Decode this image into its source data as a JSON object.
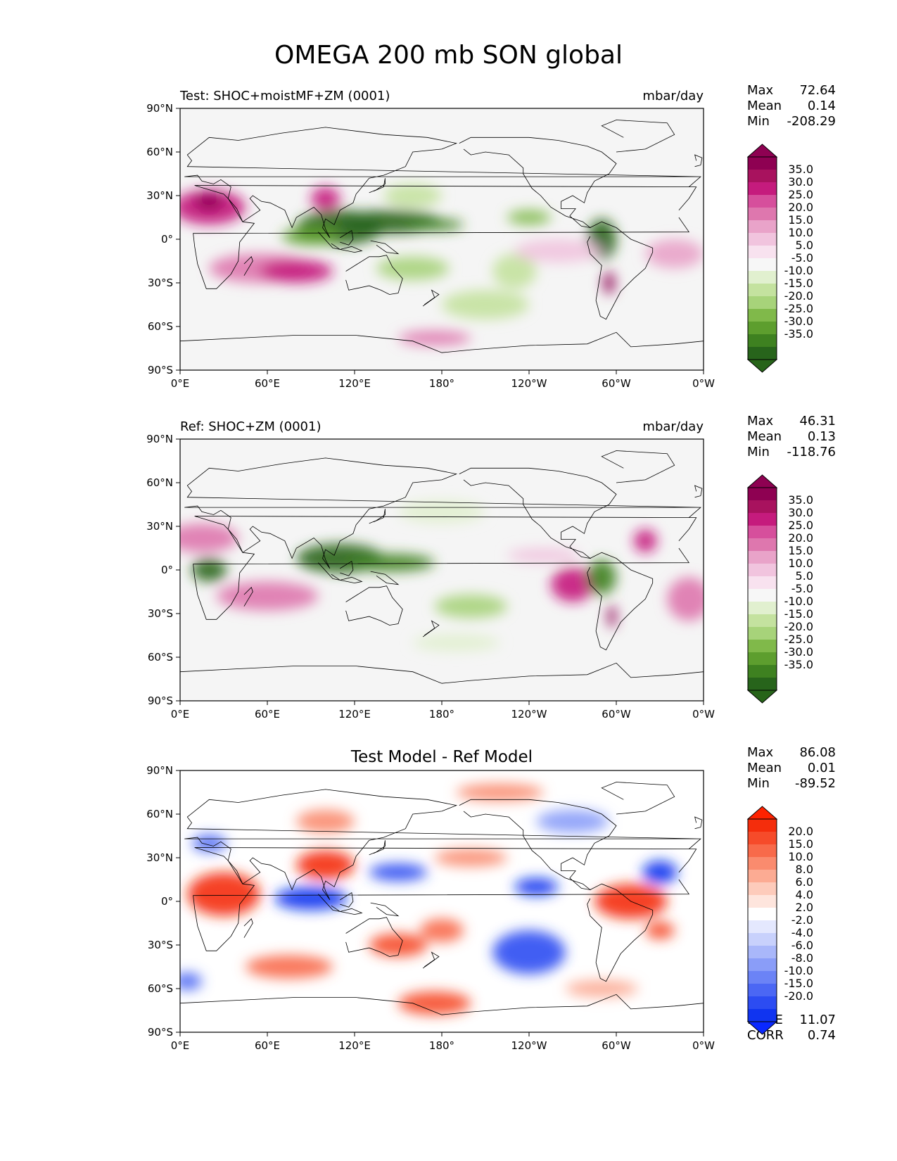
{
  "figure": {
    "title": "OMEGA 200 mb SON global"
  },
  "chart_data": [
    {
      "type": "heatmap",
      "id": "test",
      "title_left": "Test: SHOC+moistMF+ZM (0001)",
      "title_right": "mbar/day",
      "title_center": "",
      "stats": [
        {
          "label": "Max",
          "value": "72.64"
        },
        {
          "label": "Mean",
          "value": "0.14"
        },
        {
          "label": "Min",
          "value": "-208.29"
        }
      ],
      "extra_stats": [],
      "colorbar": {
        "ticks": [
          "35.0",
          "30.0",
          "25.0",
          "20.0",
          "15.0",
          "10.0",
          "5.0",
          "-5.0",
          "-10.0",
          "-15.0",
          "-20.0",
          "-25.0",
          "-30.0",
          "-35.0"
        ],
        "colors": [
          "#8e0152",
          "#a8125e",
          "#c51b7d",
          "#d64f9c",
          "#de77ae",
          "#e9a3c9",
          "#f1c4de",
          "#f8e2ef",
          "#f7f7f7",
          "#e1f0cf",
          "#c4e29f",
          "#a7d37a",
          "#80b94a",
          "#5d9e2e",
          "#3e8120",
          "#27641b"
        ],
        "cap_top": "#8e0152",
        "cap_bottom": "#276419"
      },
      "field": {
        "background": "#f5f5f5",
        "blobs": [
          {
            "lon": 20,
            "lat": 22,
            "rx": 25,
            "ry": 12,
            "color": "#c51b7d"
          },
          {
            "lon": 20,
            "lat": 26,
            "rx": 10,
            "ry": 6,
            "color": "#8e0152"
          },
          {
            "lon": 55,
            "lat": -20,
            "rx": 35,
            "ry": 10,
            "color": "#de77ae"
          },
          {
            "lon": 80,
            "lat": -22,
            "rx": 25,
            "ry": 8,
            "color": "#c51b7d"
          },
          {
            "lon": 110,
            "lat": 8,
            "rx": 30,
            "ry": 12,
            "color": "#27641b"
          },
          {
            "lon": 145,
            "lat": 12,
            "rx": 35,
            "ry": 8,
            "color": "#27641b"
          },
          {
            "lon": 175,
            "lat": 10,
            "rx": 20,
            "ry": 4,
            "color": "#3e8120"
          },
          {
            "lon": 90,
            "lat": 2,
            "rx": 20,
            "ry": 6,
            "color": "#5d9e2e"
          },
          {
            "lon": 290,
            "lat": 0,
            "rx": 10,
            "ry": 14,
            "color": "#27641b"
          },
          {
            "lon": 295,
            "lat": -30,
            "rx": 4,
            "ry": 8,
            "color": "#8e0152"
          },
          {
            "lon": 210,
            "lat": -45,
            "rx": 30,
            "ry": 10,
            "color": "#c4e29f"
          },
          {
            "lon": 230,
            "lat": -22,
            "rx": 15,
            "ry": 12,
            "color": "#c4e29f"
          },
          {
            "lon": 160,
            "lat": -20,
            "rx": 25,
            "ry": 8,
            "color": "#a7d37a"
          },
          {
            "lon": 340,
            "lat": -10,
            "rx": 20,
            "ry": 10,
            "color": "#e9a3c9"
          },
          {
            "lon": 260,
            "lat": -8,
            "rx": 30,
            "ry": 8,
            "color": "#f1c4de"
          },
          {
            "lon": 160,
            "lat": 30,
            "rx": 20,
            "ry": 8,
            "color": "#c4e29f"
          },
          {
            "lon": 240,
            "lat": 15,
            "rx": 15,
            "ry": 5,
            "color": "#80b94a"
          },
          {
            "lon": 175,
            "lat": -68,
            "rx": 25,
            "ry": 5,
            "color": "#de77ae"
          },
          {
            "lon": 100,
            "lat": 28,
            "rx": 10,
            "ry": 8,
            "color": "#c51b7d"
          }
        ]
      }
    },
    {
      "type": "heatmap",
      "id": "ref",
      "title_left": "Ref: SHOC+ZM (0001)",
      "title_right": "mbar/day",
      "title_center": "",
      "stats": [
        {
          "label": "Max",
          "value": "46.31"
        },
        {
          "label": "Mean",
          "value": "0.13"
        },
        {
          "label": "Min",
          "value": "-118.76"
        }
      ],
      "extra_stats": [],
      "colorbar": {
        "ticks": [
          "35.0",
          "30.0",
          "25.0",
          "20.0",
          "15.0",
          "10.0",
          "5.0",
          "-5.0",
          "-10.0",
          "-15.0",
          "-20.0",
          "-25.0",
          "-30.0",
          "-35.0"
        ],
        "colors": [
          "#8e0152",
          "#a8125e",
          "#c51b7d",
          "#d64f9c",
          "#de77ae",
          "#e9a3c9",
          "#f1c4de",
          "#f8e2ef",
          "#f7f7f7",
          "#e1f0cf",
          "#c4e29f",
          "#a7d37a",
          "#80b94a",
          "#5d9e2e",
          "#3e8120",
          "#27641b"
        ],
        "cap_top": "#8e0152",
        "cap_bottom": "#276419"
      },
      "field": {
        "background": "#f5f5f5",
        "blobs": [
          {
            "lon": 15,
            "lat": 22,
            "rx": 25,
            "ry": 10,
            "color": "#de77ae"
          },
          {
            "lon": 20,
            "lat": 0,
            "rx": 12,
            "ry": 8,
            "color": "#27641b"
          },
          {
            "lon": 60,
            "lat": -18,
            "rx": 35,
            "ry": 10,
            "color": "#de77ae"
          },
          {
            "lon": 110,
            "lat": 8,
            "rx": 30,
            "ry": 10,
            "color": "#27641b"
          },
          {
            "lon": 145,
            "lat": 5,
            "rx": 30,
            "ry": 6,
            "color": "#3e8120"
          },
          {
            "lon": 270,
            "lat": -10,
            "rx": 15,
            "ry": 12,
            "color": "#c51b7d"
          },
          {
            "lon": 290,
            "lat": -5,
            "rx": 10,
            "ry": 12,
            "color": "#3e8120"
          },
          {
            "lon": 297,
            "lat": -32,
            "rx": 3,
            "ry": 8,
            "color": "#8e0152"
          },
          {
            "lon": 250,
            "lat": 10,
            "rx": 25,
            "ry": 5,
            "color": "#f1c4de"
          },
          {
            "lon": 350,
            "lat": -20,
            "rx": 15,
            "ry": 15,
            "color": "#de77ae"
          },
          {
            "lon": 320,
            "lat": 20,
            "rx": 8,
            "ry": 8,
            "color": "#c51b7d"
          },
          {
            "lon": 200,
            "lat": -25,
            "rx": 25,
            "ry": 8,
            "color": "#a7d37a"
          },
          {
            "lon": 190,
            "lat": -50,
            "rx": 30,
            "ry": 6,
            "color": "#e1f0cf"
          },
          {
            "lon": 180,
            "lat": 40,
            "rx": 30,
            "ry": 8,
            "color": "#e1f0cf"
          }
        ]
      }
    },
    {
      "type": "heatmap",
      "id": "diff",
      "title_left": "",
      "title_right": "",
      "title_center": "Test Model - Ref Model",
      "stats": [
        {
          "label": "Max",
          "value": "86.08"
        },
        {
          "label": "Mean",
          "value": "0.01"
        },
        {
          "label": "Min",
          "value": "-89.52"
        }
      ],
      "extra_stats": [
        {
          "label": "RMSE",
          "value": "11.07"
        },
        {
          "label": "CORR",
          "value": "0.74"
        }
      ],
      "colorbar": {
        "ticks": [
          "20.0",
          "15.0",
          "10.0",
          "8.0",
          "6.0",
          "4.0",
          "2.0",
          "-2.0",
          "-4.0",
          "-6.0",
          "-8.0",
          "-10.0",
          "-15.0",
          "-20.0"
        ],
        "colors": [
          "#f42d0c",
          "#f64b2a",
          "#f86a4a",
          "#fa8b6e",
          "#fcab93",
          "#fdcbbb",
          "#fee5dd",
          "#ffffff",
          "#e4e8fe",
          "#c8d1fc",
          "#a9b7fa",
          "#8a9df8",
          "#6b83f6",
          "#4b67f4",
          "#2c4cf2",
          "#1034f0"
        ],
        "cap_top": "#ff2200",
        "cap_bottom": "#0a28ff"
      },
      "field": {
        "background": "#ffffff",
        "blobs": [
          {
            "lon": 30,
            "lat": 5,
            "rx": 25,
            "ry": 15,
            "color": "#f42d0c"
          },
          {
            "lon": 100,
            "lat": 25,
            "rx": 20,
            "ry": 10,
            "color": "#f42d0c"
          },
          {
            "lon": 75,
            "lat": -45,
            "rx": 30,
            "ry": 8,
            "color": "#f86a4a"
          },
          {
            "lon": 150,
            "lat": -30,
            "rx": 20,
            "ry": 8,
            "color": "#f64b2a"
          },
          {
            "lon": 175,
            "lat": -70,
            "rx": 25,
            "ry": 8,
            "color": "#f64b2a"
          },
          {
            "lon": 90,
            "lat": 2,
            "rx": 25,
            "ry": 8,
            "color": "#1034f0"
          },
          {
            "lon": 150,
            "lat": 20,
            "rx": 20,
            "ry": 6,
            "color": "#2c4cf2"
          },
          {
            "lon": 240,
            "lat": -35,
            "rx": 25,
            "ry": 15,
            "color": "#2c4cf2"
          },
          {
            "lon": 245,
            "lat": 10,
            "rx": 15,
            "ry": 6,
            "color": "#1034f0"
          },
          {
            "lon": 310,
            "lat": 0,
            "rx": 25,
            "ry": 12,
            "color": "#f42d0c"
          },
          {
            "lon": 330,
            "lat": -20,
            "rx": 10,
            "ry": 6,
            "color": "#f64b2a"
          },
          {
            "lon": 330,
            "lat": 20,
            "rx": 12,
            "ry": 8,
            "color": "#1034f0"
          },
          {
            "lon": 180,
            "lat": -20,
            "rx": 15,
            "ry": 8,
            "color": "#f86a4a"
          },
          {
            "lon": 200,
            "lat": 30,
            "rx": 25,
            "ry": 6,
            "color": "#fa8b6e"
          },
          {
            "lon": 5,
            "lat": -55,
            "rx": 10,
            "ry": 6,
            "color": "#4b67f4"
          },
          {
            "lon": 270,
            "lat": 55,
            "rx": 25,
            "ry": 8,
            "color": "#8a9df8"
          },
          {
            "lon": 220,
            "lat": 75,
            "rx": 30,
            "ry": 6,
            "color": "#fa8b6e"
          },
          {
            "lon": 100,
            "lat": 55,
            "rx": 20,
            "ry": 8,
            "color": "#fa8b6e"
          },
          {
            "lon": 20,
            "lat": 40,
            "rx": 12,
            "ry": 6,
            "color": "#4b67f4"
          },
          {
            "lon": 290,
            "lat": -60,
            "rx": 25,
            "ry": 6,
            "color": "#fcab93"
          }
        ]
      }
    }
  ],
  "axes": {
    "lat_labels": [
      "90°N",
      "60°N",
      "30°N",
      "0°",
      "30°S",
      "60°S",
      "90°S"
    ],
    "lon_labels": [
      "0°E",
      "60°E",
      "120°E",
      "180°",
      "120°W",
      "60°W",
      "0°W"
    ]
  }
}
